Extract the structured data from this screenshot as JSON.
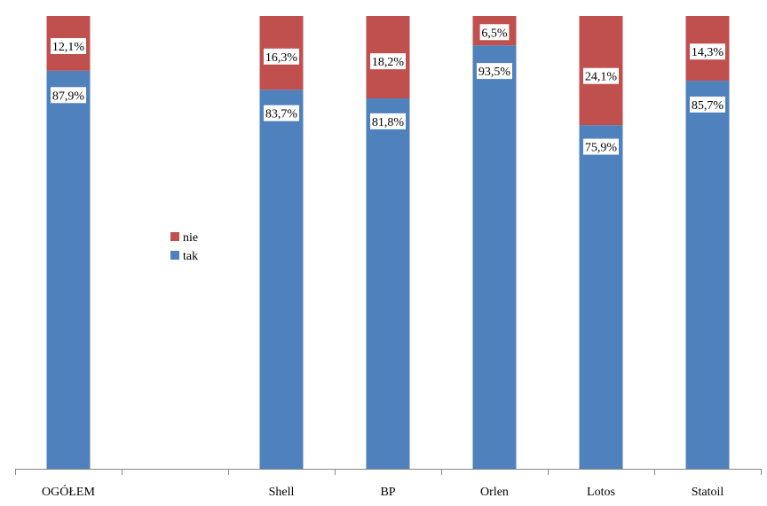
{
  "chart_data": {
    "type": "bar",
    "stacked": true,
    "normalized_percent": true,
    "categories": [
      "OGÓŁEM",
      "",
      "Shell",
      "BP",
      "Orlen",
      "Lotos",
      "Statoil"
    ],
    "series": [
      {
        "name": "tak",
        "color": "#4f81bd",
        "values": [
          87.9,
          null,
          83.7,
          81.8,
          93.5,
          75.9,
          85.7
        ],
        "labels": [
          "87,9%",
          "",
          "83,7%",
          "81,8%",
          "93,5%",
          "75,9%",
          "85,7%"
        ]
      },
      {
        "name": "nie",
        "color": "#c0504d",
        "values": [
          12.1,
          null,
          16.3,
          18.2,
          6.5,
          24.1,
          14.3
        ],
        "labels": [
          "12,1%",
          "",
          "16,3%",
          "18,2%",
          "6,5%",
          "24,1%",
          "14,3%"
        ]
      }
    ],
    "ylim": [
      0,
      100
    ],
    "grid": false,
    "legend": {
      "position": "center-left",
      "entries": [
        "nie",
        "tak"
      ]
    }
  }
}
